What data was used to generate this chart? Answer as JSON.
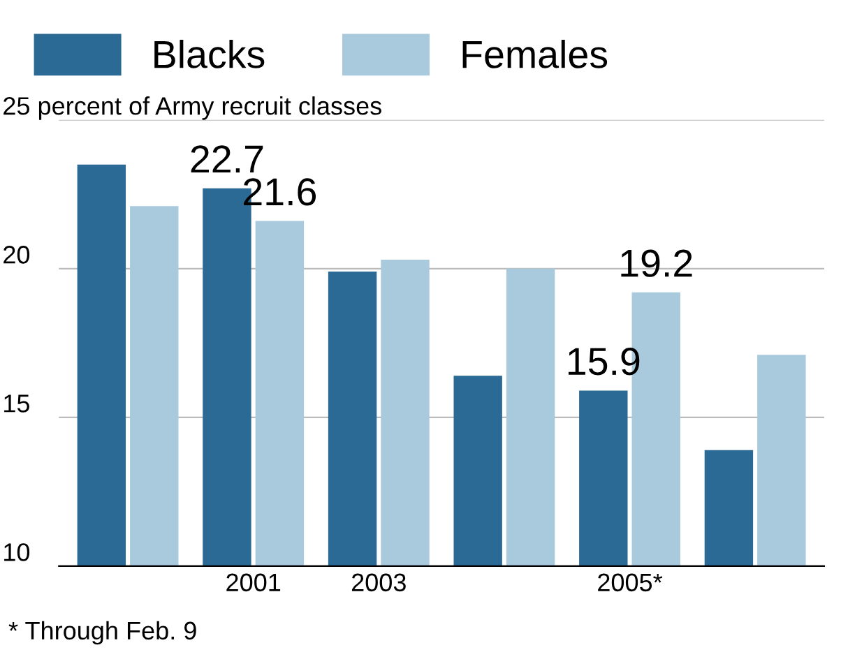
{
  "chart_data": {
    "type": "bar",
    "categories": [
      null,
      "2001",
      "2003",
      null,
      "2005*",
      null
    ],
    "series": [
      {
        "name": "Blacks",
        "color": "#2a6a94",
        "values": [
          23.5,
          22.7,
          19.9,
          16.4,
          15.9,
          13.9
        ],
        "value_labels": [
          null,
          "22.7",
          null,
          null,
          "15.9",
          null
        ]
      },
      {
        "name": "Females",
        "color": "#a9c9dc",
        "values": [
          22.1,
          21.6,
          20.3,
          20.0,
          19.2,
          17.1
        ],
        "value_labels": [
          null,
          "21.6",
          null,
          null,
          "19.2",
          null
        ]
      }
    ],
    "ylim": [
      10,
      25
    ],
    "yticks": [
      10,
      15,
      20,
      {
        "value": 25,
        "label": "25 percent of Army recruit classes"
      }
    ],
    "grid": "y",
    "legend": "top left",
    "annotations": [
      "* Through Feb. 9"
    ]
  }
}
